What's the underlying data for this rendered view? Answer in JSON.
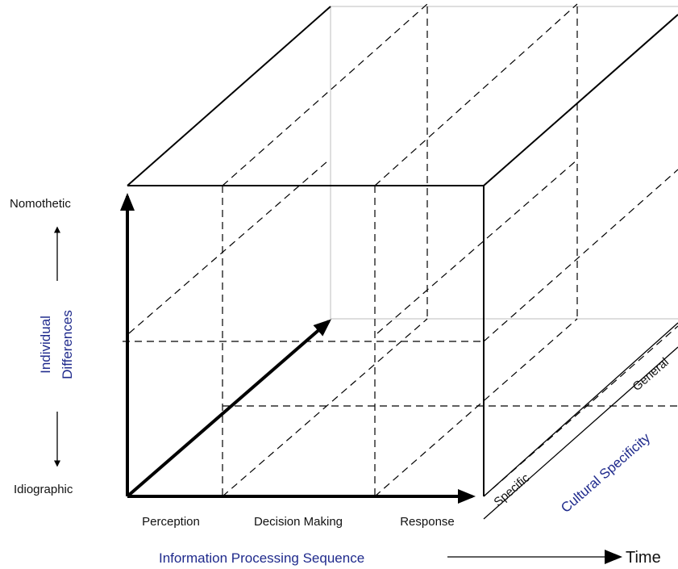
{
  "labels": {
    "nomothetic": "Nomothetic",
    "idiographic": "Idiographic",
    "individual_differences_line1": "Individual",
    "individual_differences_line2": "Differences",
    "perception": "Perception",
    "decision_making": "Decision Making",
    "response": "Response",
    "info_processing_sequence": "Information Processing Sequence",
    "time": "Time",
    "specific": "Specific",
    "general": "General",
    "cultural_specificity": "Cultural Specificity"
  },
  "colors": {
    "axis_label_blue": "#1f2a8c",
    "line_black": "#000000",
    "hidden_edge_gray": "#bdbdbd"
  }
}
